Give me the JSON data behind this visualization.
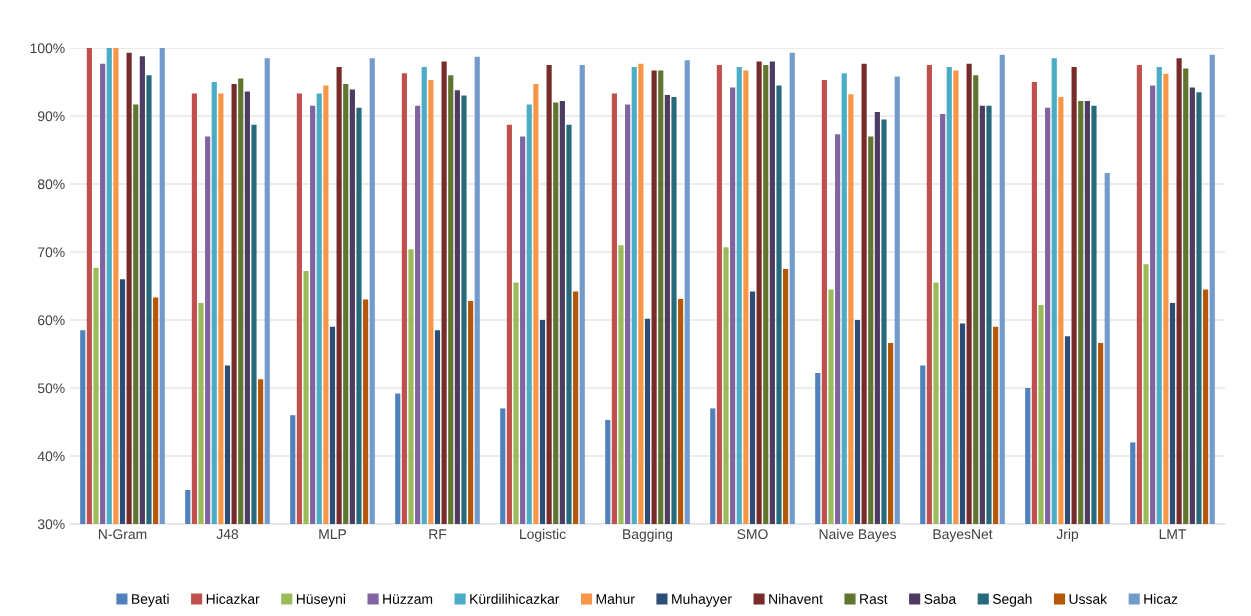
{
  "chart_data": {
    "type": "bar",
    "categories": [
      "N-Gram",
      "J48",
      "MLP",
      "RF",
      "Logistic",
      "Bagging",
      "SMO",
      "Naive Bayes",
      "BayesNet",
      "Jrip",
      "LMT"
    ],
    "ylim": [
      30,
      100
    ],
    "yticks": [
      {
        "value": 30,
        "label": "30%"
      },
      {
        "value": 40,
        "label": "40%"
      },
      {
        "value": 50,
        "label": "50%"
      },
      {
        "value": 60,
        "label": "60%"
      },
      {
        "value": 70,
        "label": "70%"
      },
      {
        "value": 80,
        "label": "80%"
      },
      {
        "value": 90,
        "label": "90%"
      },
      {
        "value": 100,
        "label": "100%"
      }
    ],
    "grid": "y",
    "legend": "bottom",
    "series": [
      {
        "name": "Beyati",
        "color": "#4f81bd",
        "values": [
          58.5,
          35,
          46,
          49.2,
          47,
          45.3,
          47,
          52.2,
          53.3,
          50,
          42
        ]
      },
      {
        "name": "Hicazkar",
        "color": "#c0504d",
        "values": [
          100,
          93.3,
          93.3,
          96.3,
          88.7,
          93.3,
          97.5,
          95.3,
          97.5,
          95,
          97.5
        ]
      },
      {
        "name": "Hüseyni",
        "color": "#9bbb59",
        "values": [
          67.7,
          62.5,
          67.2,
          70.4,
          65.5,
          71,
          70.7,
          64.5,
          65.5,
          62.2,
          68.2
        ]
      },
      {
        "name": "Hüzzam",
        "color": "#8064a2",
        "values": [
          97.7,
          87,
          91.5,
          91.5,
          87,
          91.7,
          94.2,
          87.3,
          90.3,
          91.2,
          94.5
        ]
      },
      {
        "name": "Kürdilihicazkar",
        "color": "#4bacc6",
        "values": [
          100,
          95,
          93.3,
          97.2,
          91.7,
          97.2,
          97.2,
          96.3,
          97.2,
          98.5,
          97.2
        ]
      },
      {
        "name": "Mahur",
        "color": "#f79646",
        "values": [
          100,
          93.3,
          94.5,
          95.3,
          94.7,
          97.7,
          96.7,
          93.2,
          96.7,
          92.8,
          96.2
        ]
      },
      {
        "name": "Muhayyer",
        "color": "#2c4d75",
        "values": [
          66,
          53.3,
          59,
          58.5,
          60,
          60.2,
          64.2,
          60,
          59.5,
          57.6,
          62.5
        ]
      },
      {
        "name": "Nihavent",
        "color": "#772c2a",
        "values": [
          99.3,
          94.7,
          97.2,
          98,
          97.5,
          96.7,
          98,
          97.7,
          97.7,
          97.2,
          98.5
        ]
      },
      {
        "name": "Rast",
        "color": "#5f7530",
        "values": [
          91.7,
          95.5,
          94.7,
          96,
          92,
          96.7,
          97.5,
          87,
          96,
          92.2,
          97
        ]
      },
      {
        "name": "Saba",
        "color": "#4d3b62",
        "values": [
          98.8,
          93.6,
          93.9,
          93.8,
          92.2,
          93.1,
          98,
          90.6,
          91.5,
          92.2,
          94.2
        ]
      },
      {
        "name": "Segah",
        "color": "#276a7c",
        "values": [
          96,
          88.7,
          91.2,
          93,
          88.7,
          92.8,
          94.5,
          89.5,
          91.5,
          91.5,
          93.5
        ]
      },
      {
        "name": "Ussak",
        "color": "#b65708",
        "values": [
          63.3,
          51.3,
          63,
          62.8,
          64.2,
          63.1,
          67.5,
          56.6,
          59,
          56.6,
          64.5
        ]
      },
      {
        "name": "Hicaz",
        "color": "#729aca",
        "values": [
          100,
          98.5,
          98.5,
          98.7,
          97.5,
          98.2,
          99.3,
          95.8,
          99,
          81.6,
          99
        ]
      }
    ]
  }
}
